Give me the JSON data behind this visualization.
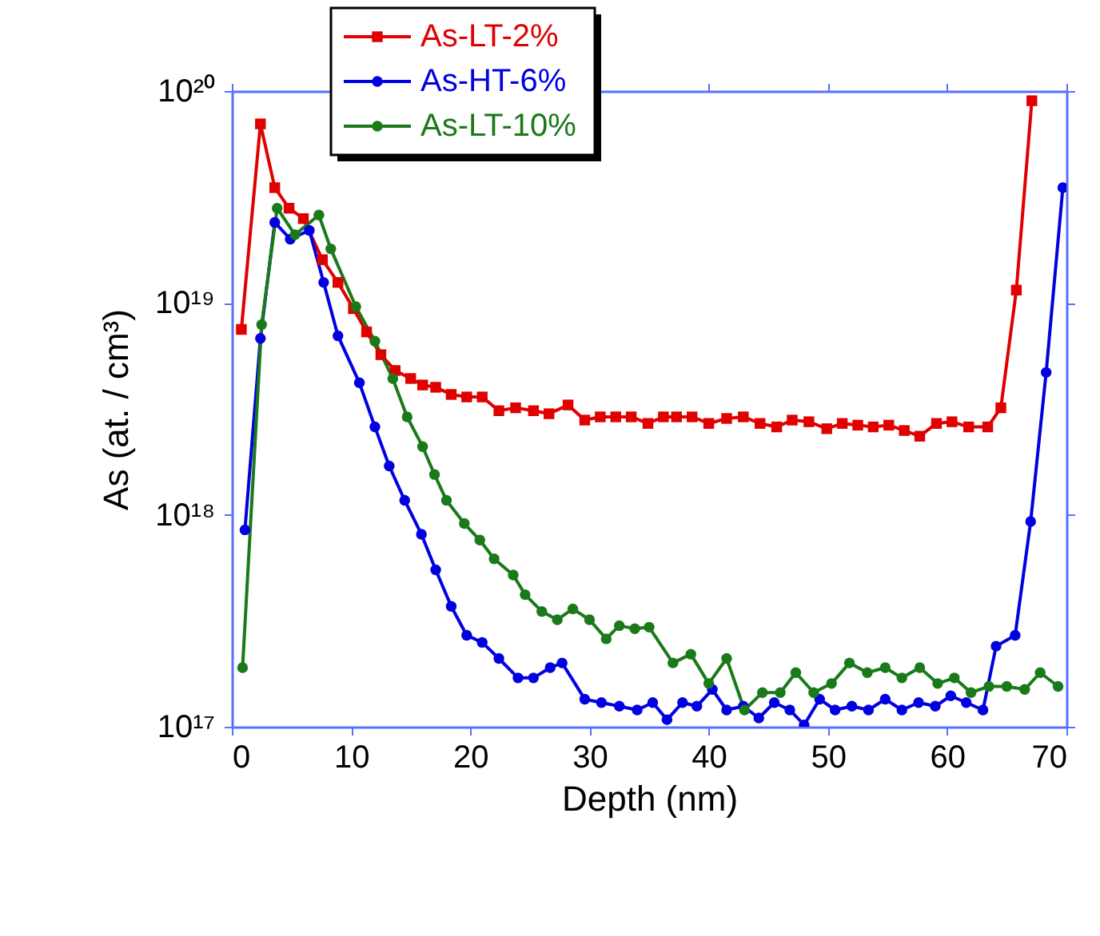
{
  "chart_data": {
    "type": "line",
    "xlabel": "Depth (nm)",
    "ylabel": "As (at. / cm³)",
    "log": "y",
    "xlim": [
      0,
      70
    ],
    "xticks": [
      0,
      10,
      20,
      30,
      40,
      50,
      60,
      70
    ],
    "ylim": [
      1e+17,
      1e+20
    ],
    "yticks": [
      {
        "value": 1e+17,
        "label": "10¹⁷"
      },
      {
        "value": 1e+18,
        "label": "10¹⁸"
      },
      {
        "value": 1e+19,
        "label": "10¹⁹"
      },
      {
        "value": 1e+20,
        "label": "10²⁰"
      }
    ],
    "grid": false,
    "legend": "top left",
    "line_style": "solid",
    "series": [
      {
        "name": "As-LT-2%",
        "color": "#e00000",
        "marker": "square",
        "x": [
          0.8,
          2.4,
          3.6,
          4.8,
          6.0,
          7.6,
          8.9,
          10.2,
          11.3,
          12.5,
          13.7,
          15.0,
          16.0,
          17.1,
          18.4,
          19.7,
          21.0,
          22.4,
          23.8,
          25.3,
          26.6,
          28.2,
          29.6,
          30.9,
          32.2,
          33.5,
          34.9,
          36.2,
          37.3,
          38.6,
          40.0,
          41.5,
          42.9,
          44.3,
          45.7,
          47.0,
          48.4,
          49.9,
          51.2,
          52.5,
          53.8,
          55.1,
          56.4,
          57.7,
          59.1,
          60.4,
          61.8,
          63.4,
          64.5,
          65.8,
          67.1
        ],
        "values": [
          7.5e+18,
          7e+19,
          3.5e+19,
          2.8e+19,
          2.5e+19,
          1.6e+19,
          1.25e+19,
          9.4e+18,
          7.3e+18,
          5.7e+18,
          4.8e+18,
          4.4e+18,
          4.1e+18,
          4e+18,
          3.7e+18,
          3.6e+18,
          3.6e+18,
          3.1e+18,
          3.2e+18,
          3.1e+18,
          3e+18,
          3.3e+18,
          2.8e+18,
          2.9e+18,
          2.9e+18,
          2.9e+18,
          2.7e+18,
          2.9e+18,
          2.9e+18,
          2.9e+18,
          2.7e+18,
          2.85e+18,
          2.9e+18,
          2.7e+18,
          2.6e+18,
          2.8e+18,
          2.75e+18,
          2.55e+18,
          2.7e+18,
          2.65e+18,
          2.6e+18,
          2.65e+18,
          2.5e+18,
          2.35e+18,
          2.7e+18,
          2.75e+18,
          2.6e+18,
          2.6e+18,
          3.2e+18,
          1.15e+19,
          9e+19
        ]
      },
      {
        "name": "As-HT-6%",
        "color": "#0000e0",
        "marker": "circle",
        "x": [
          1.1,
          2.4,
          3.6,
          4.9,
          6.5,
          7.7,
          8.9,
          10.7,
          12.0,
          13.2,
          14.5,
          15.9,
          17.1,
          18.4,
          19.7,
          21.0,
          22.4,
          24.0,
          25.3,
          26.7,
          27.7,
          29.6,
          31.0,
          32.5,
          34.0,
          35.3,
          36.5,
          37.8,
          39.0,
          40.3,
          41.5,
          42.9,
          44.2,
          45.5,
          46.8,
          48.0,
          49.3,
          50.6,
          52.0,
          53.4,
          54.8,
          56.2,
          57.6,
          59.0,
          60.3,
          61.6,
          63.0,
          64.1,
          65.7,
          67.0,
          68.3,
          69.7
        ],
        "values": [
          8.5e+17,
          6.8e+18,
          2.4e+19,
          2e+19,
          2.2e+19,
          1.25e+19,
          7e+18,
          4.2e+18,
          2.6e+18,
          1.7e+18,
          1.17e+18,
          8.1e+17,
          5.5e+17,
          3.7e+17,
          2.7e+17,
          2.5e+17,
          2.1e+17,
          1.7e+17,
          1.7e+17,
          1.9e+17,
          2e+17,
          1.35e+17,
          1.3e+17,
          1.25e+17,
          1.2e+17,
          1.3e+17,
          1.08e+17,
          1.3e+17,
          1.25e+17,
          1.5e+17,
          1.2e+17,
          1.25e+17,
          1.1e+17,
          1.3e+17,
          1.2e+17,
          1.02e+17,
          1.35e+17,
          1.2e+17,
          1.25e+17,
          1.2e+17,
          1.35e+17,
          1.2e+17,
          1.3e+17,
          1.25e+17,
          1.4e+17,
          1.3e+17,
          1.2e+17,
          2.4e+17,
          2.7e+17,
          9.3e+17,
          4.7e+18,
          3.5e+19
        ]
      },
      {
        "name": "As-LT-10%",
        "color": "#1a7a1a",
        "marker": "circle",
        "x": [
          0.9,
          2.5,
          3.8,
          5.3,
          7.3,
          8.3,
          10.4,
          12.0,
          13.5,
          14.7,
          16.0,
          17.0,
          18.0,
          19.5,
          20.8,
          22.0,
          23.6,
          24.6,
          26.0,
          27.3,
          28.6,
          30.0,
          31.4,
          32.5,
          33.8,
          35.0,
          37.0,
          38.5,
          40.0,
          41.5,
          43.0,
          44.5,
          46.0,
          47.3,
          48.8,
          50.3,
          51.8,
          53.3,
          54.8,
          56.2,
          57.7,
          59.2,
          60.6,
          62.0,
          63.5,
          65.0,
          66.5,
          67.8,
          69.3
        ],
        "values": [
          1.9e+17,
          7.9e+18,
          2.8e+19,
          2.1e+19,
          2.6e+19,
          1.8e+19,
          9.6e+18,
          6.6e+18,
          4.4e+18,
          2.9e+18,
          2.1e+18,
          1.55e+18,
          1.17e+18,
          9.1e+17,
          7.6e+17,
          6.2e+17,
          5.2e+17,
          4.2e+17,
          3.5e+17,
          3.2e+17,
          3.6e+17,
          3.2e+17,
          2.6e+17,
          3e+17,
          2.9e+17,
          2.95e+17,
          2e+17,
          2.2e+17,
          1.6e+17,
          2.1e+17,
          1.2e+17,
          1.45e+17,
          1.45e+17,
          1.8e+17,
          1.45e+17,
          1.6e+17,
          2e+17,
          1.8e+17,
          1.9e+17,
          1.7e+17,
          1.9e+17,
          1.6e+17,
          1.7e+17,
          1.45e+17,
          1.55e+17,
          1.55e+17,
          1.5e+17,
          1.8e+17,
          1.55e+17
        ]
      }
    ]
  }
}
